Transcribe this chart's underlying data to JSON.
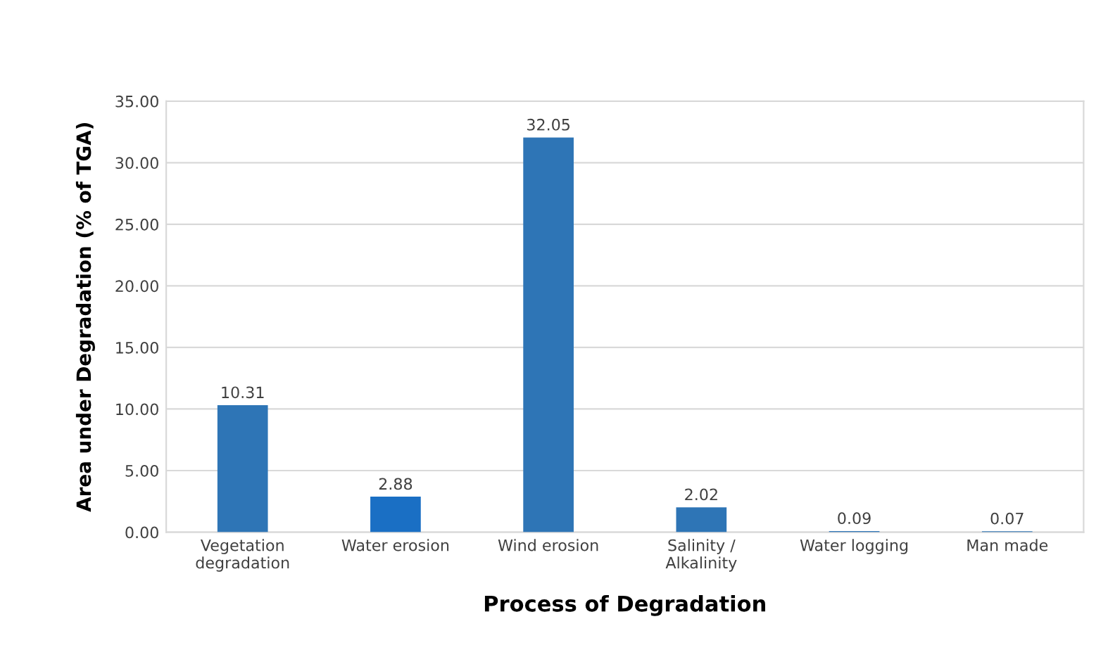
{
  "chart_data": {
    "type": "bar",
    "xlabel": "Process of Degradation",
    "ylabel": "Area under Degradation (% of TGA)",
    "categories": [
      "Vegetation\ndegradation",
      "Water erosion",
      "Wind erosion",
      "Salinity /\nAlkalinity",
      "Water logging",
      "Man made"
    ],
    "values": [
      10.31,
      2.88,
      32.05,
      2.02,
      0.09,
      0.07
    ],
    "colors": [
      "#2e75b6",
      "#1a6fc4",
      "#2e75b6",
      "#2e75b6",
      "#2e75b6",
      "#2e75b6"
    ],
    "ylim": [
      0,
      35
    ],
    "yticks": [
      {
        "value": 0,
        "label": "0.00"
      },
      {
        "value": 5,
        "label": "5.00"
      },
      {
        "value": 10,
        "label": "10.00"
      },
      {
        "value": 15,
        "label": "15.00"
      },
      {
        "value": 20,
        "label": "20.00"
      },
      {
        "value": 25,
        "label": "25.00"
      },
      {
        "value": 30,
        "label": "30.00"
      },
      {
        "value": 35,
        "label": "35.00"
      }
    ],
    "grid": "y",
    "data_labels": true
  }
}
